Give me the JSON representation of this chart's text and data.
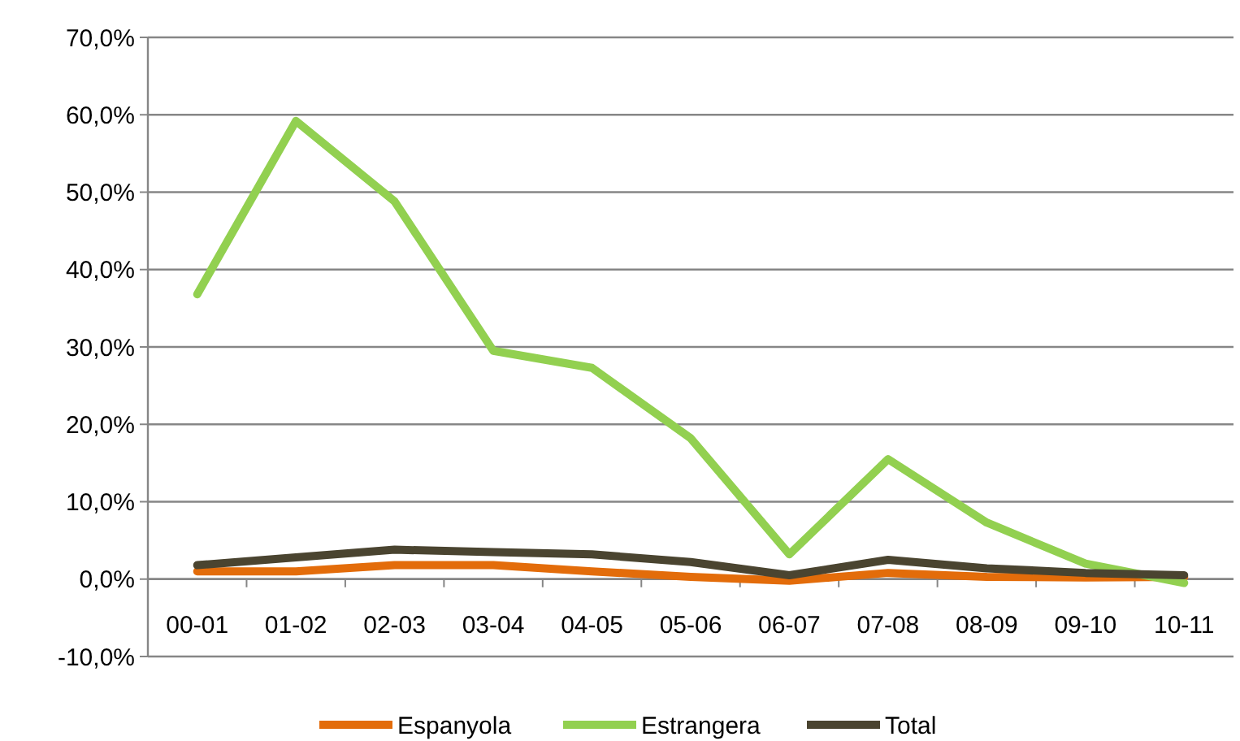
{
  "chart_data": {
    "type": "line",
    "categories": [
      "00-01",
      "01-02",
      "02-03",
      "03-04",
      "04-05",
      "05-06",
      "06-07",
      "07-08",
      "08-09",
      "09-10",
      "10-11"
    ],
    "series": [
      {
        "name": "Espanyola",
        "color": "#e36c0a",
        "values": [
          1.0,
          1.0,
          1.8,
          1.8,
          1.0,
          0.3,
          -0.2,
          0.8,
          0.3,
          0.2,
          0.3
        ]
      },
      {
        "name": "Estrangera",
        "color": "#92d050",
        "values": [
          36.8,
          59.2,
          48.8,
          29.5,
          27.3,
          18.2,
          3.2,
          15.5,
          7.3,
          2.0,
          -0.5
        ]
      },
      {
        "name": "Total",
        "color": "#4a4430",
        "values": [
          1.8,
          2.8,
          3.8,
          3.5,
          3.2,
          2.2,
          0.5,
          2.5,
          1.4,
          0.8,
          0.5
        ]
      }
    ],
    "ylim": [
      -10,
      70
    ],
    "yticks": [
      {
        "value": -10,
        "label": "-10,0%"
      },
      {
        "value": 0,
        "label": "0,0%"
      },
      {
        "value": 10,
        "label": "10,0%"
      },
      {
        "value": 20,
        "label": "20,0%"
      },
      {
        "value": 30,
        "label": "30,0%"
      },
      {
        "value": 40,
        "label": "40,0%"
      },
      {
        "value": 50,
        "label": "50,0%"
      },
      {
        "value": 60,
        "label": "60,0%"
      },
      {
        "value": 70,
        "label": "70,0%"
      }
    ],
    "grid": "y",
    "legend": "bottom",
    "marker": "none",
    "line_style": "solid"
  }
}
